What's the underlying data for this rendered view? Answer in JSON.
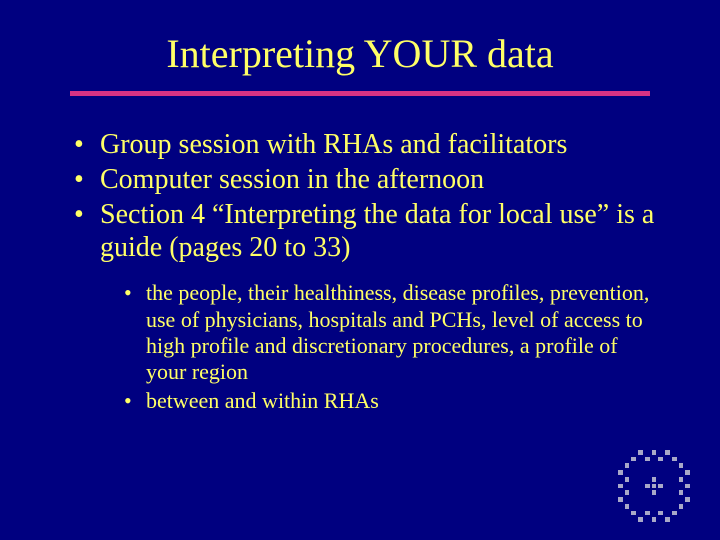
{
  "slide": {
    "title": "Interpreting YOUR data",
    "title_color": "#ffff66",
    "title_fontsize": 40,
    "rule_color": "#d63384",
    "background_color": "#000080",
    "text_color": "#ffff66",
    "body_fontsize": 28,
    "sub_fontsize": 22,
    "bullets": [
      "Group session with RHAs and facilitators",
      "Computer session in the afternoon",
      "Section 4 “Interpreting the data for local use” is a guide (pages 20 to 33)"
    ],
    "sub_bullets": [
      "the people, their healthiness, disease profiles, prevention, use of physicians, hospitals and PCHs, level of access to high profile and discretionary procedures, a profile of your region",
      "between and within RHAs"
    ],
    "logo": {
      "grid_size": 11,
      "dot_color": "#a8a8c8",
      "pattern": [
        [
          0,
          0,
          0,
          1,
          0,
          1,
          0,
          1,
          0,
          0,
          0
        ],
        [
          0,
          0,
          1,
          0,
          1,
          0,
          1,
          0,
          1,
          0,
          0
        ],
        [
          0,
          1,
          0,
          0,
          0,
          0,
          0,
          0,
          0,
          1,
          0
        ],
        [
          1,
          0,
          0,
          0,
          0,
          0,
          0,
          0,
          0,
          0,
          1
        ],
        [
          0,
          1,
          0,
          0,
          0,
          1,
          0,
          0,
          0,
          1,
          0
        ],
        [
          1,
          0,
          0,
          0,
          1,
          1,
          1,
          0,
          0,
          0,
          1
        ],
        [
          0,
          1,
          0,
          0,
          0,
          1,
          0,
          0,
          0,
          1,
          0
        ],
        [
          1,
          0,
          0,
          0,
          0,
          0,
          0,
          0,
          0,
          0,
          1
        ],
        [
          0,
          1,
          0,
          0,
          0,
          0,
          0,
          0,
          0,
          1,
          0
        ],
        [
          0,
          0,
          1,
          0,
          1,
          0,
          1,
          0,
          1,
          0,
          0
        ],
        [
          0,
          0,
          0,
          1,
          0,
          1,
          0,
          1,
          0,
          0,
          0
        ]
      ]
    }
  }
}
